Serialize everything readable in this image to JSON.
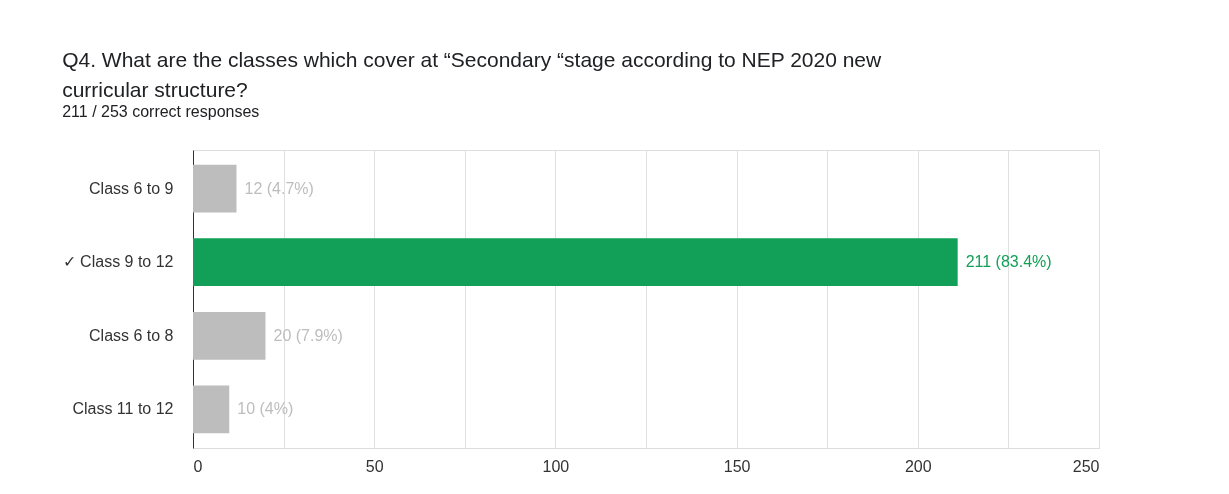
{
  "chart_data": {
    "type": "bar",
    "orientation": "horizontal",
    "title": "Q4. What are the classes which cover at “Secondary “stage according to NEP 2020 new curricular structure?",
    "subtitle": "211 / 253 correct responses",
    "categories": [
      "Class 6 to 9",
      "✓ Class 9 to 12",
      "Class 6 to 8",
      "Class 11 to 12"
    ],
    "values": [
      12,
      211,
      20,
      10
    ],
    "colors": [
      "#bdbdbd",
      "#129f57",
      "#bdbdbd",
      "#bdbdbd"
    ],
    "value_labels": [
      "12 (4.7%)",
      "211 (83.4%)",
      "20 (7.9%)",
      "10 (4%)"
    ],
    "xlim": [
      0,
      250
    ],
    "xticks": [
      0,
      {
        "value": 25,
        "label": null
      },
      50,
      {
        "value": 75,
        "label": null
      },
      100,
      {
        "value": 125,
        "label": null
      },
      150,
      {
        "value": 175,
        "label": null
      },
      200,
      {
        "value": 225,
        "label": null
      },
      250
    ],
    "grid": "x"
  }
}
